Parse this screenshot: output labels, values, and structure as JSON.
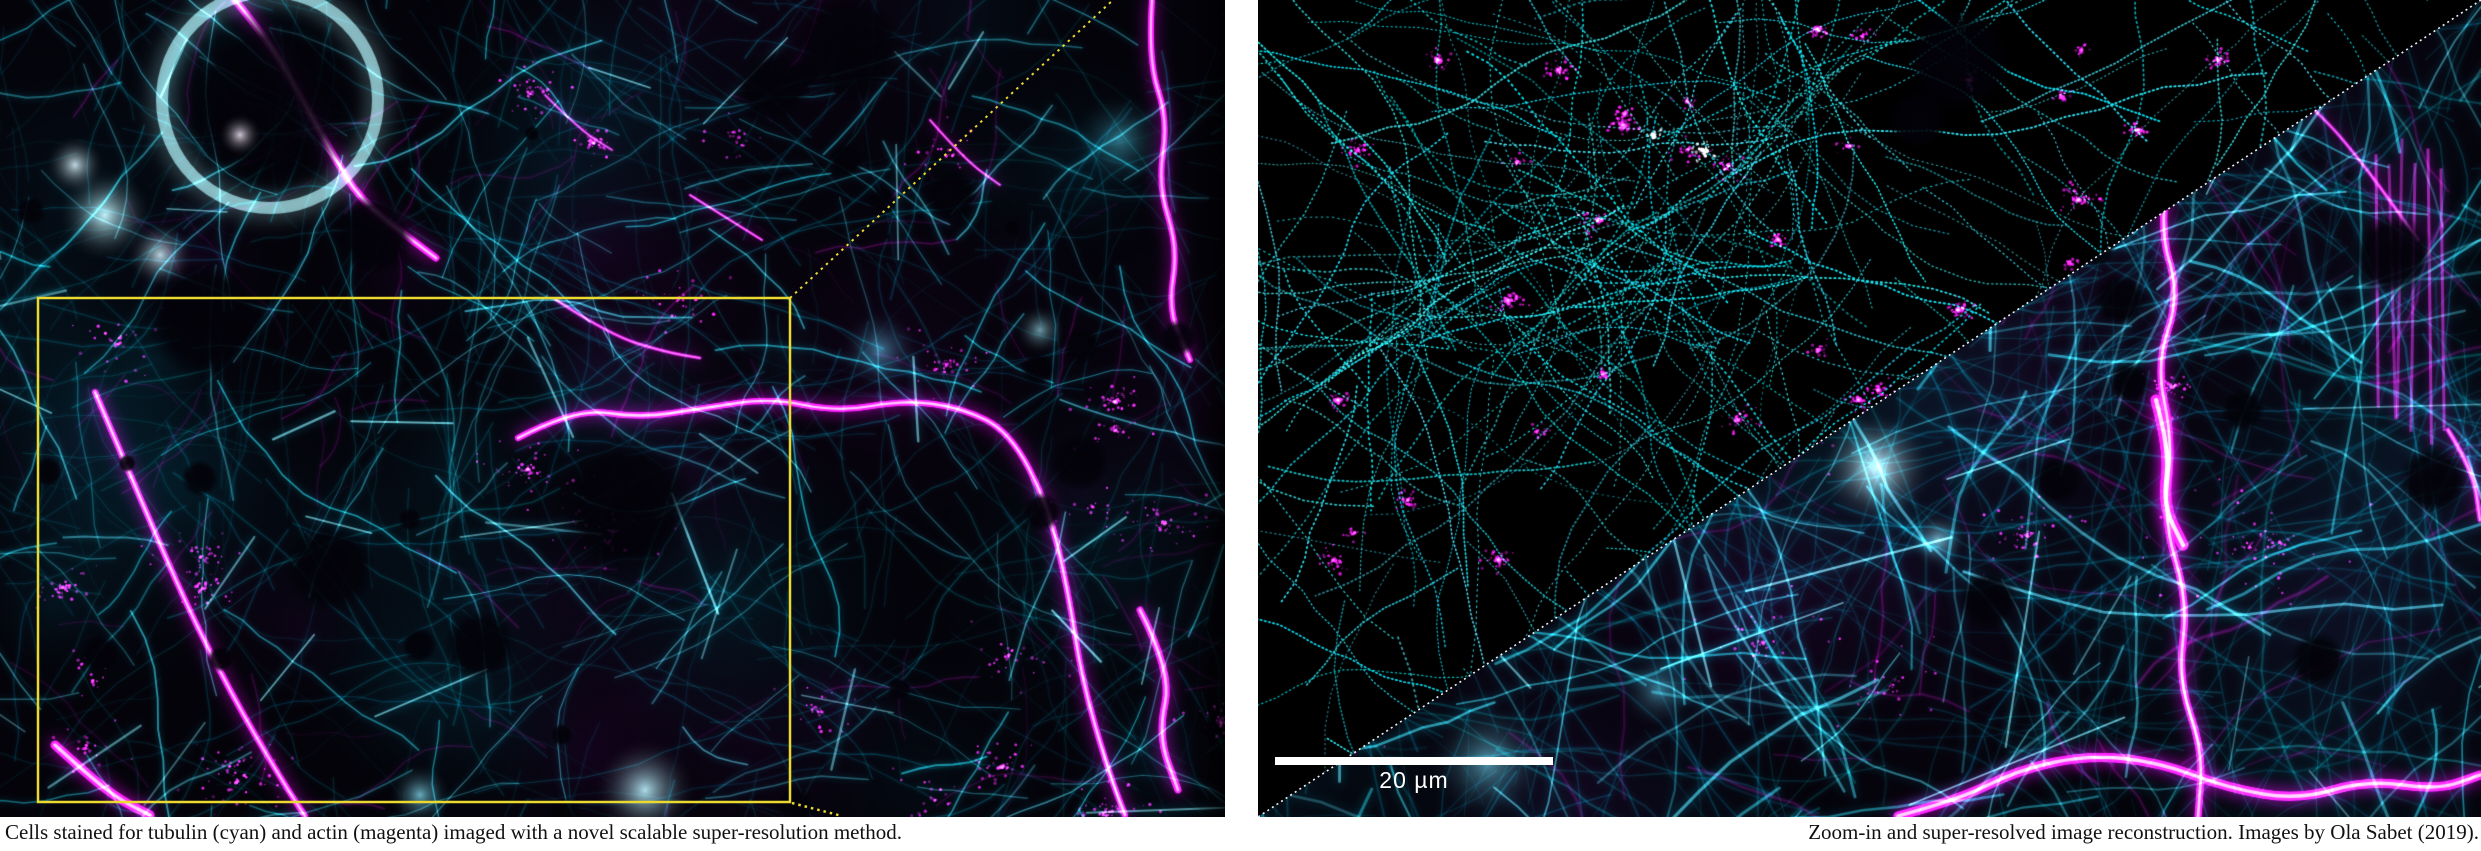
{
  "figure": {
    "left_panel": {
      "caption": "Cells stained for tubulin (cyan) and actin (magenta) imaged with a novel scalable super-resolution method."
    },
    "right_panel": {
      "caption": "Zoom-in and super-resolved image reconstruction. Images by Ola Sabet (2019).",
      "scale_bar_label": "20 µm"
    },
    "colors": {
      "tubulin_cyan": "#00e5ff",
      "actin_magenta": "#ff00ff",
      "roi_yellow": "#ecd92f",
      "divider_white": "#ffffff",
      "scale_bar_white": "#ffffff",
      "caption_text": "#111111",
      "page_background": "#ffffff",
      "image_background": "#04030a"
    }
  }
}
